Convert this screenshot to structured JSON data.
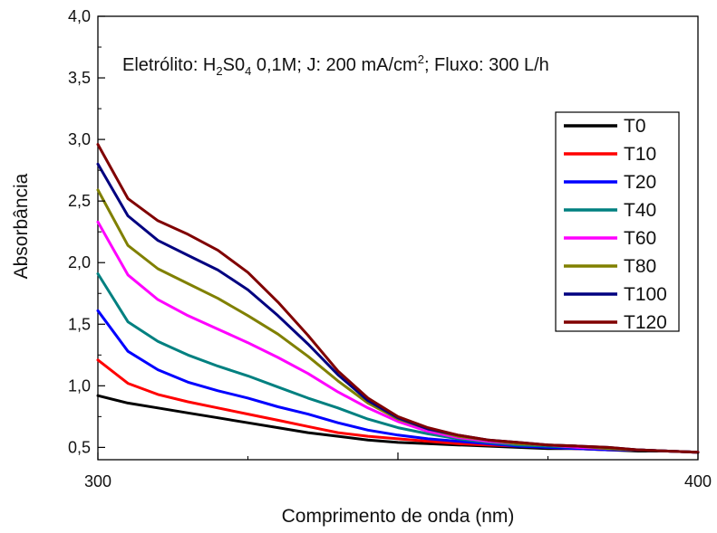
{
  "chart_data": {
    "type": "line",
    "title": "",
    "annotation": {
      "prefix": "Eletrólito: H",
      "sub1": "2",
      "mid1": "S0",
      "sub2": "4",
      "mid2": " 0,1M; J: 200 mA/cm",
      "sup": "2",
      "suffix": "; Fluxo: 300 L/h"
    },
    "xlabel": "Comprimento de onda (nm)",
    "ylabel": "Absorbância",
    "xlim": [
      300,
      400
    ],
    "ylim": [
      0.4,
      4.0
    ],
    "x_ticks": [
      300,
      350,
      400
    ],
    "x_tick_labels": [
      "300",
      "",
      "400"
    ],
    "y_ticks": [
      0.5,
      1.0,
      1.5,
      2.0,
      2.5,
      3.0,
      3.5,
      4.0
    ],
    "y_tick_labels": [
      "0,5",
      "1,0",
      "1,5",
      "2,0",
      "2,5",
      "3,0",
      "3,5",
      "4,0"
    ],
    "legend_position": "right",
    "grid": false,
    "x": [
      300,
      305,
      310,
      315,
      320,
      325,
      330,
      335,
      340,
      345,
      350,
      355,
      360,
      365,
      370,
      375,
      380,
      385,
      390,
      395,
      400
    ],
    "series": [
      {
        "name": "T0",
        "color": "#000000",
        "values": [
          0.92,
          0.86,
          0.82,
          0.78,
          0.74,
          0.7,
          0.66,
          0.62,
          0.59,
          0.56,
          0.54,
          0.53,
          0.52,
          0.51,
          0.5,
          0.49,
          0.49,
          0.48,
          0.47,
          0.47,
          0.46
        ]
      },
      {
        "name": "T10",
        "color": "#ff0000",
        "values": [
          1.21,
          1.02,
          0.93,
          0.87,
          0.82,
          0.77,
          0.72,
          0.67,
          0.62,
          0.59,
          0.57,
          0.55,
          0.53,
          0.52,
          0.51,
          0.5,
          0.49,
          0.48,
          0.48,
          0.47,
          0.46
        ]
      },
      {
        "name": "T20",
        "color": "#0000ff",
        "values": [
          1.61,
          1.28,
          1.13,
          1.03,
          0.96,
          0.9,
          0.83,
          0.77,
          0.7,
          0.64,
          0.6,
          0.57,
          0.55,
          0.53,
          0.51,
          0.5,
          0.49,
          0.48,
          0.48,
          0.47,
          0.46
        ]
      },
      {
        "name": "T40",
        "color": "#008080",
        "values": [
          1.91,
          1.52,
          1.36,
          1.25,
          1.16,
          1.08,
          0.99,
          0.9,
          0.82,
          0.73,
          0.66,
          0.61,
          0.57,
          0.54,
          0.52,
          0.51,
          0.5,
          0.49,
          0.48,
          0.47,
          0.46
        ]
      },
      {
        "name": "T60",
        "color": "#ff00ff",
        "values": [
          2.33,
          1.9,
          1.7,
          1.57,
          1.46,
          1.35,
          1.23,
          1.1,
          0.95,
          0.82,
          0.71,
          0.63,
          0.58,
          0.55,
          0.53,
          0.52,
          0.5,
          0.49,
          0.48,
          0.47,
          0.46
        ]
      },
      {
        "name": "T80",
        "color": "#808000",
        "values": [
          2.59,
          2.14,
          1.95,
          1.83,
          1.71,
          1.57,
          1.42,
          1.24,
          1.04,
          0.86,
          0.73,
          0.65,
          0.59,
          0.56,
          0.53,
          0.52,
          0.51,
          0.49,
          0.48,
          0.47,
          0.46
        ]
      },
      {
        "name": "T100",
        "color": "#000080",
        "values": [
          2.8,
          2.38,
          2.18,
          2.06,
          1.94,
          1.78,
          1.57,
          1.34,
          1.09,
          0.88,
          0.74,
          0.65,
          0.6,
          0.56,
          0.54,
          0.52,
          0.51,
          0.5,
          0.48,
          0.47,
          0.46
        ]
      },
      {
        "name": "T120",
        "color": "#800000",
        "values": [
          2.96,
          2.52,
          2.34,
          2.23,
          2.1,
          1.92,
          1.68,
          1.41,
          1.12,
          0.9,
          0.75,
          0.66,
          0.6,
          0.56,
          0.54,
          0.52,
          0.51,
          0.5,
          0.48,
          0.47,
          0.46
        ]
      }
    ]
  }
}
